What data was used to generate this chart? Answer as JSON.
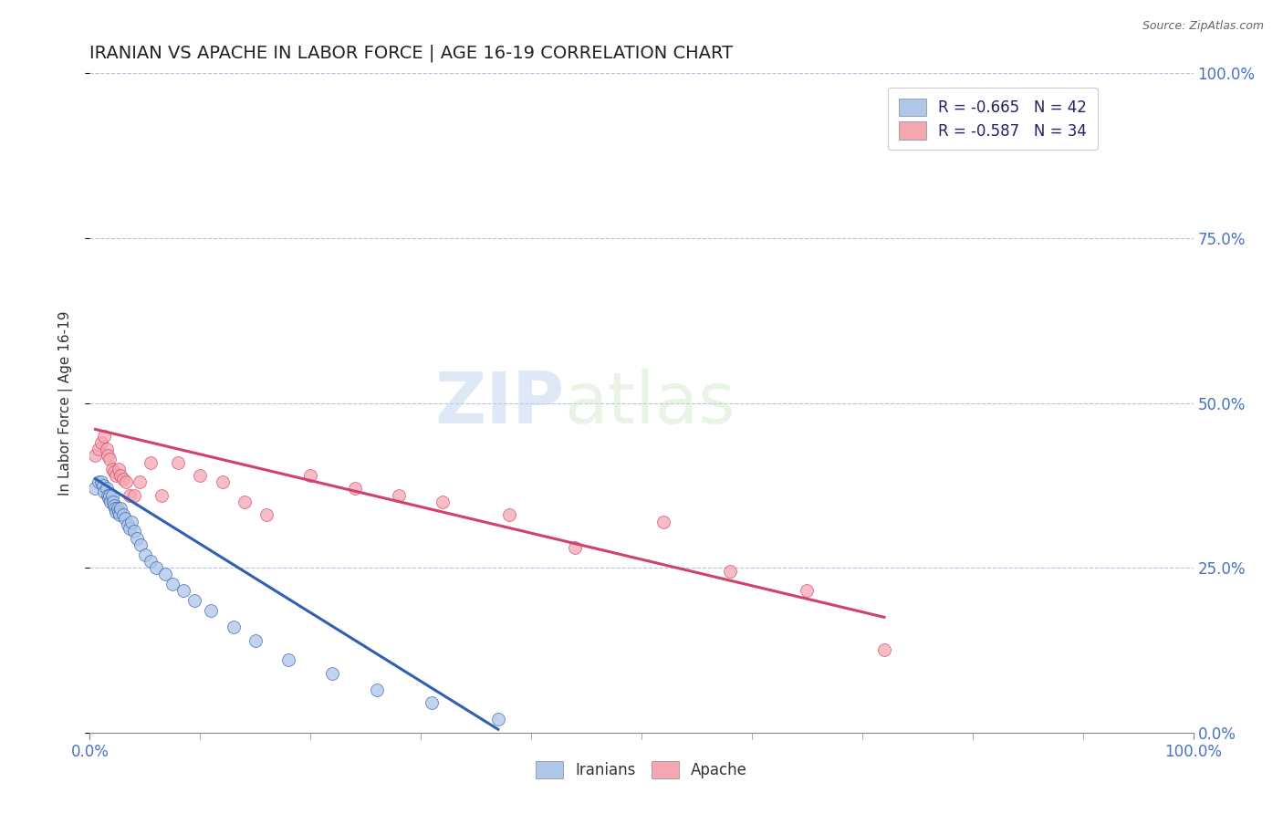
{
  "title": "IRANIAN VS APACHE IN LABOR FORCE | AGE 16-19 CORRELATION CHART",
  "source": "Source: ZipAtlas.com",
  "ylabel": "In Labor Force | Age 16-19",
  "legend_iranians": "R = -0.665   N = 42",
  "legend_apache": "R = -0.587   N = 34",
  "iranians_color": "#aec6e8",
  "apache_color": "#f4a7b0",
  "iranians_line_color": "#3060b0",
  "apache_line_color": "#d04070",
  "title_color": "#222222",
  "source_color": "#666666",
  "background_color": "#ffffff",
  "grid_color": "#b0c4de",
  "watermark_zip": "ZIP",
  "watermark_atlas": "atlas",
  "iranians_x": [
    0.005,
    0.008,
    0.01,
    0.012,
    0.013,
    0.015,
    0.016,
    0.017,
    0.018,
    0.019,
    0.02,
    0.021,
    0.022,
    0.023,
    0.024,
    0.025,
    0.026,
    0.027,
    0.028,
    0.03,
    0.032,
    0.034,
    0.036,
    0.038,
    0.04,
    0.043,
    0.046,
    0.05,
    0.055,
    0.06,
    0.068,
    0.075,
    0.085,
    0.095,
    0.11,
    0.13,
    0.15,
    0.18,
    0.22,
    0.26,
    0.31,
    0.37
  ],
  "iranians_y": [
    0.37,
    0.38,
    0.38,
    0.375,
    0.365,
    0.37,
    0.36,
    0.355,
    0.36,
    0.35,
    0.36,
    0.35,
    0.345,
    0.34,
    0.335,
    0.34,
    0.335,
    0.33,
    0.34,
    0.33,
    0.325,
    0.315,
    0.31,
    0.32,
    0.305,
    0.295,
    0.285,
    0.27,
    0.26,
    0.25,
    0.24,
    0.225,
    0.215,
    0.2,
    0.185,
    0.16,
    0.14,
    0.11,
    0.09,
    0.065,
    0.045,
    0.02
  ],
  "apache_x": [
    0.005,
    0.008,
    0.01,
    0.013,
    0.015,
    0.016,
    0.018,
    0.02,
    0.022,
    0.024,
    0.026,
    0.028,
    0.03,
    0.033,
    0.036,
    0.04,
    0.045,
    0.055,
    0.065,
    0.08,
    0.1,
    0.12,
    0.14,
    0.16,
    0.2,
    0.24,
    0.28,
    0.32,
    0.38,
    0.44,
    0.52,
    0.58,
    0.65,
    0.72
  ],
  "apache_y": [
    0.42,
    0.43,
    0.44,
    0.45,
    0.43,
    0.42,
    0.415,
    0.4,
    0.395,
    0.39,
    0.4,
    0.39,
    0.385,
    0.38,
    0.36,
    0.36,
    0.38,
    0.41,
    0.36,
    0.41,
    0.39,
    0.38,
    0.35,
    0.33,
    0.39,
    0.37,
    0.36,
    0.35,
    0.33,
    0.28,
    0.32,
    0.245,
    0.215,
    0.125
  ],
  "xlim": [
    0.0,
    1.0
  ],
  "ylim": [
    0.0,
    1.0
  ],
  "yticks": [
    0.0,
    0.25,
    0.5,
    0.75,
    1.0
  ],
  "iranians_trendline_x": [
    0.005,
    0.37
  ],
  "apache_trendline_x": [
    0.005,
    0.72
  ],
  "iranians_trendline_y_start": 0.385,
  "iranians_trendline_y_end": 0.005,
  "apache_trendline_y_start": 0.46,
  "apache_trendline_y_end": 0.175
}
